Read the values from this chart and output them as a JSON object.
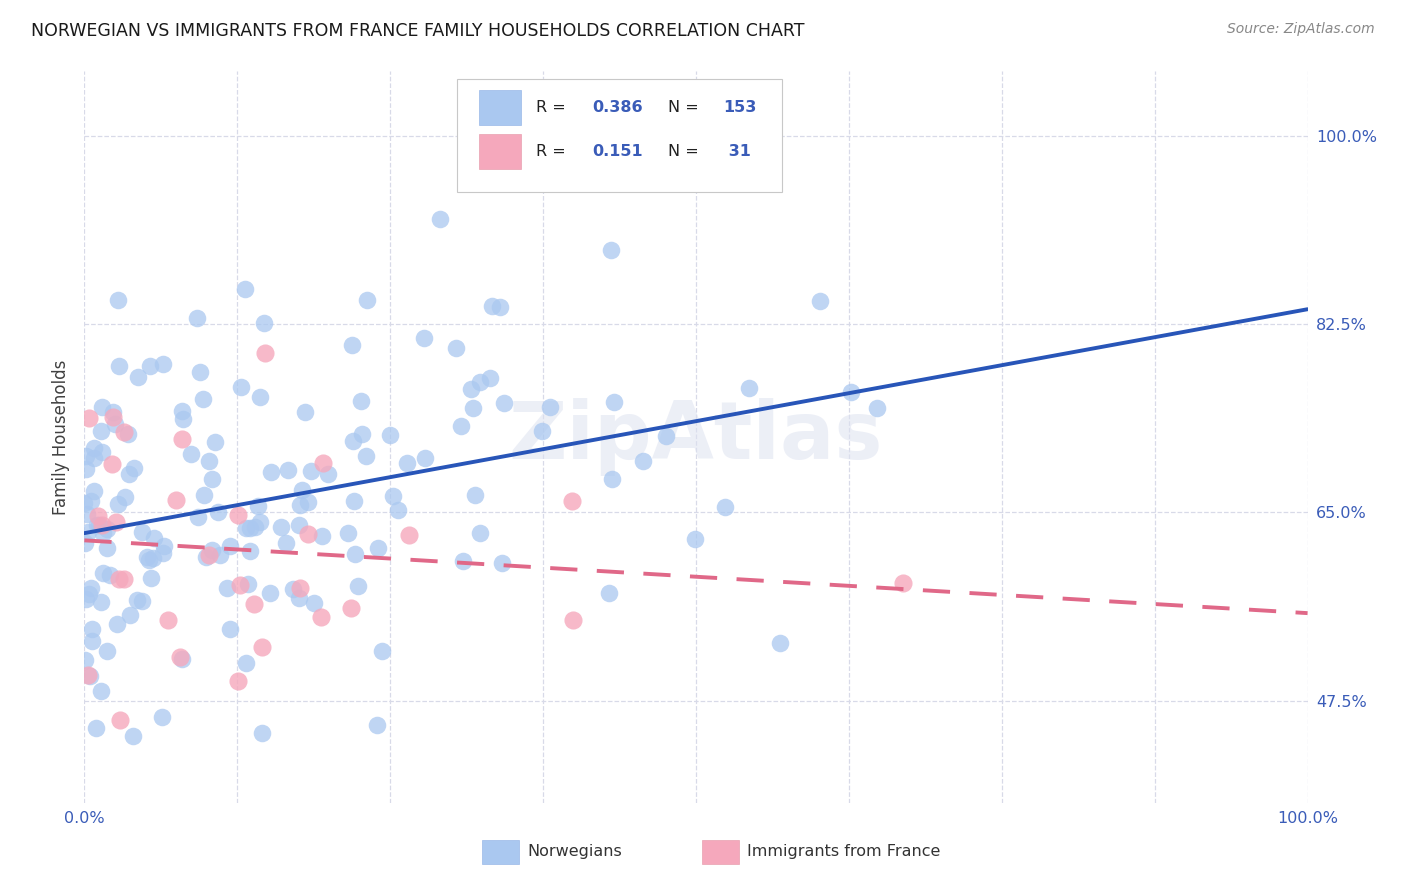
{
  "title": "NORWEGIAN VS IMMIGRANTS FROM FRANCE FAMILY HOUSEHOLDS CORRELATION CHART",
  "source": "Source: ZipAtlas.com",
  "ylabel": "Family Households",
  "ytick_labels": [
    "47.5%",
    "65.0%",
    "82.5%",
    "100.0%"
  ],
  "ytick_vals": [
    0.475,
    0.65,
    0.825,
    1.0
  ],
  "xtick_labels": [
    "0.0%",
    "",
    "",
    "",
    "",
    "",
    "",
    "",
    "100.0%"
  ],
  "xtick_vals": [
    0.0,
    0.125,
    0.25,
    0.375,
    0.5,
    0.625,
    0.75,
    0.875,
    1.0
  ],
  "watermark": "ZipAtlas",
  "legend_blue_label": "Norwegians",
  "legend_pink_label": "Immigrants from France",
  "blue_R": 0.386,
  "blue_N": 153,
  "pink_R": 0.151,
  "pink_N": 31,
  "blue_color": "#aac8f0",
  "pink_color": "#f5a8bc",
  "blue_line_color": "#2855b8",
  "pink_line_color": "#e06888",
  "title_color": "#1a1a1a",
  "source_color": "#888888",
  "tick_color": "#3a5cb8",
  "grid_color": "#d8dae8",
  "xlim": [
    0.0,
    1.0
  ],
  "ylim": [
    0.38,
    1.06
  ]
}
